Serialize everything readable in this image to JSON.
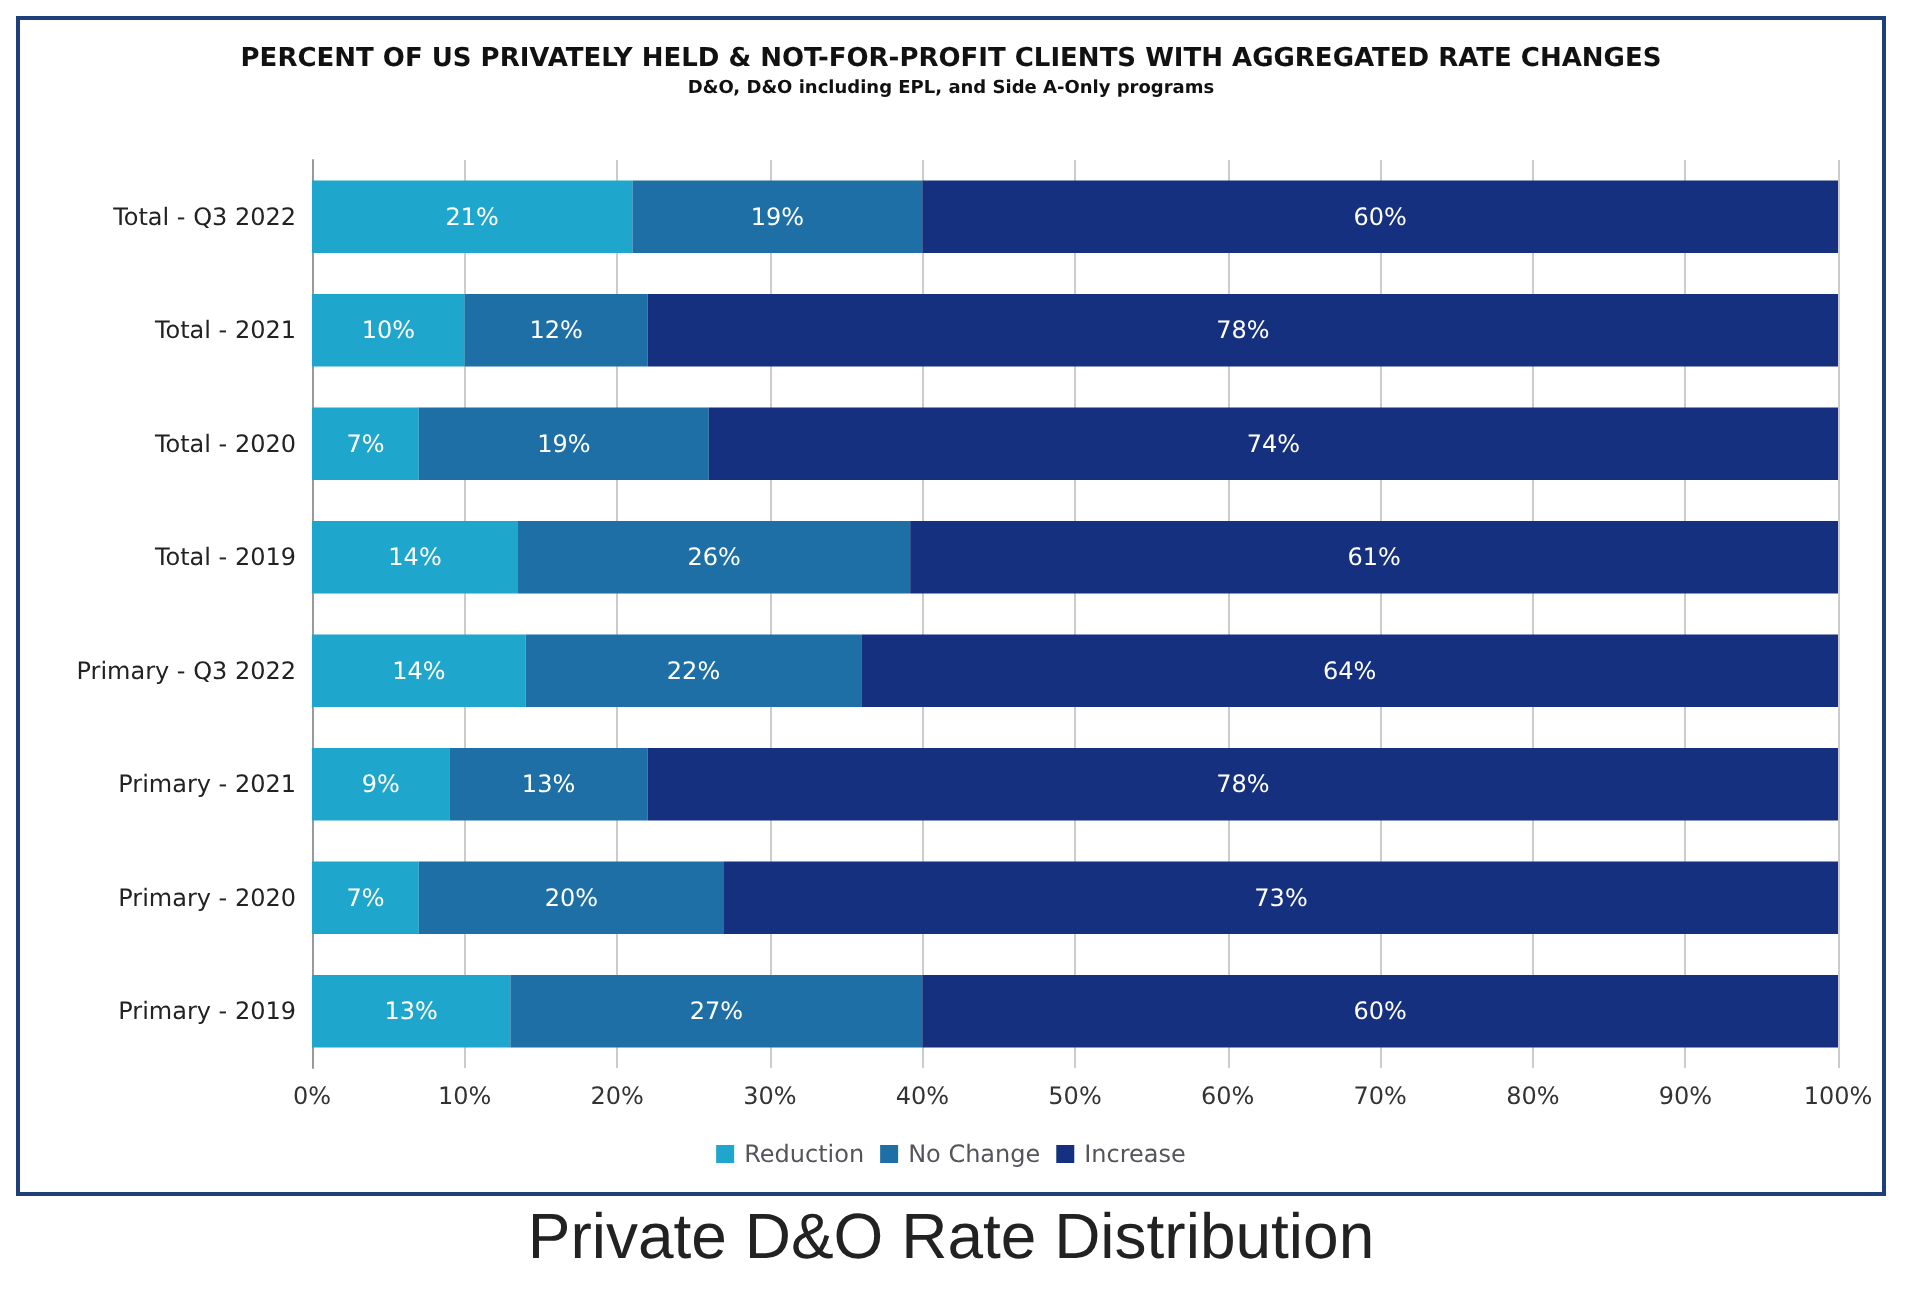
{
  "chart_data": {
    "type": "bar",
    "orientation": "horizontal",
    "stacked": true,
    "title": "PERCENT OF US PRIVATELY HELD & NOT-FOR-PROFIT CLIENTS WITH AGGREGATED RATE CHANGES",
    "subtitle": "D&O, D&O including EPL, and Side A-Only programs",
    "annotations": [
      "Private D&O Rate Distribution"
    ],
    "categories": [
      "Total - Q3 2022",
      "Total - 2021",
      "Total - 2020",
      "Total - 2019",
      "Primary - Q3 2022",
      "Primary - 2021",
      "Primary - 2020",
      "Primary - 2019"
    ],
    "series": [
      {
        "name": "Reduction",
        "color": "#1fa6cc",
        "values": [
          21,
          10,
          7,
          13.5,
          14,
          9,
          7,
          13
        ],
        "value_labels": [
          "21%",
          "10%",
          "7%",
          "14%",
          "14%",
          "9%",
          "7%",
          "13%"
        ]
      },
      {
        "name": "No Change",
        "color": "#1d6fa5",
        "values": [
          19,
          12,
          19,
          25.7,
          22,
          13,
          20,
          27
        ],
        "value_labels": [
          "19%",
          "12%",
          "19%",
          "26%",
          "22%",
          "13%",
          "20%",
          "27%"
        ]
      },
      {
        "name": "Increase",
        "color": "#14307e",
        "values": [
          60,
          78,
          74,
          60.8,
          64,
          78,
          73,
          60
        ],
        "value_labels": [
          "60%",
          "78%",
          "74%",
          "61%",
          "64%",
          "78%",
          "73%",
          "60%"
        ]
      }
    ],
    "xlim": [
      0,
      100
    ],
    "xticks": [
      {
        "value": 0,
        "label": "0%"
      },
      {
        "value": 10,
        "label": "10%"
      },
      {
        "value": 20,
        "label": "20%"
      },
      {
        "value": 30,
        "label": "30%"
      },
      {
        "value": 40,
        "label": "40%"
      },
      {
        "value": 50,
        "label": "50%"
      },
      {
        "value": 60,
        "label": "60%"
      },
      {
        "value": 70,
        "label": "70%"
      },
      {
        "value": 80,
        "label": "80%"
      },
      {
        "value": 90,
        "label": "90%"
      },
      {
        "value": 100,
        "label": "100%"
      }
    ],
    "grid": "x",
    "legend": "bottom"
  }
}
